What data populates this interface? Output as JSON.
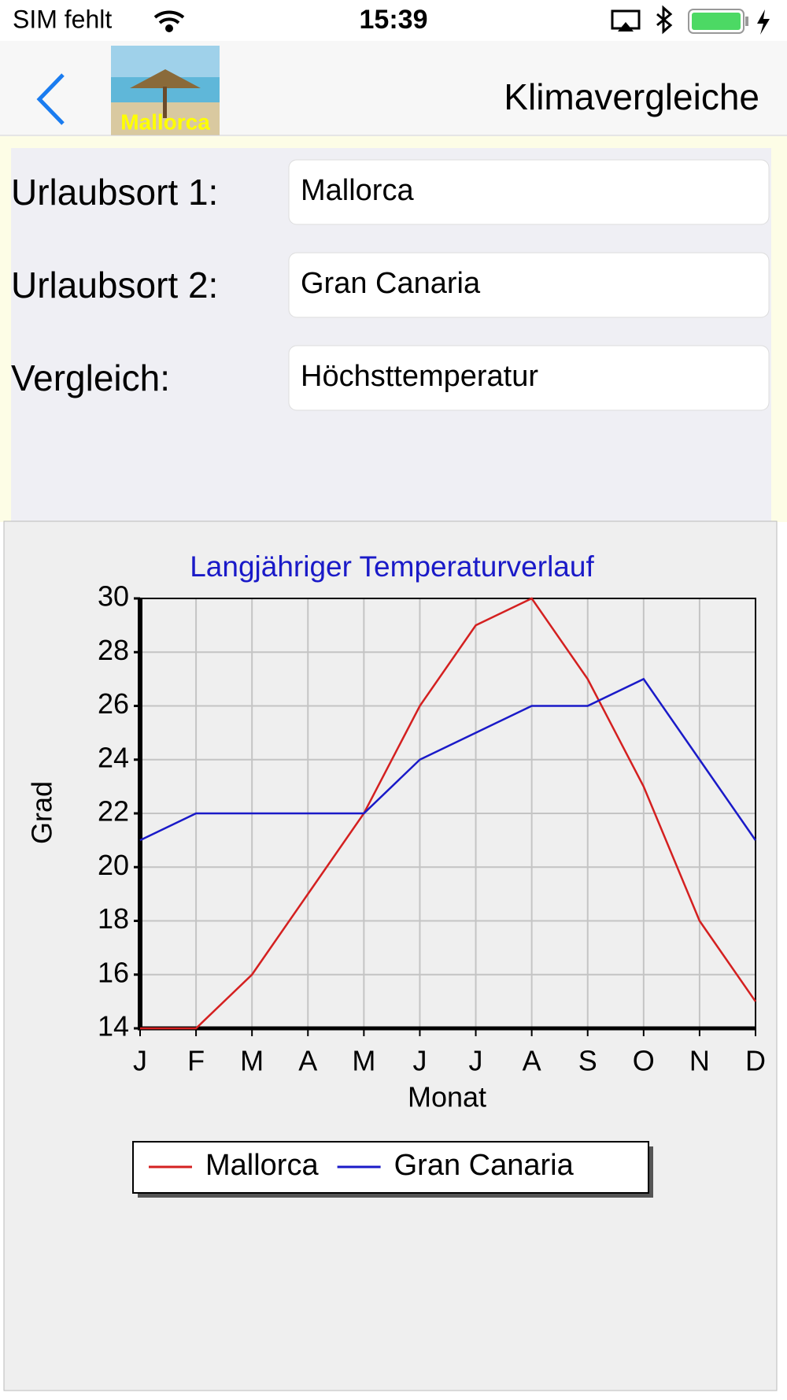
{
  "status_bar": {
    "carrier": "SIM fehlt",
    "time": "15:39"
  },
  "nav": {
    "title": "Klimavergleiche",
    "thumbnail_label": "Mallorca"
  },
  "form": {
    "rows": [
      {
        "label": "Urlaubsort 1:",
        "value": "Mallorca"
      },
      {
        "label": "Urlaubsort 2:",
        "value": "Gran Canaria"
      },
      {
        "label": "Vergleich:",
        "value": "Höchsttemperatur"
      }
    ]
  },
  "chart_data": {
    "type": "line",
    "title": "Langjähriger Temperaturverlauf",
    "x_label": "Monat",
    "y_label": "Grad",
    "categories": [
      "J",
      "F",
      "M",
      "A",
      "M",
      "J",
      "J",
      "A",
      "S",
      "O",
      "N",
      "D"
    ],
    "series": [
      {
        "name": "Mallorca",
        "color": "#d42020",
        "values": [
          14,
          14,
          16,
          19,
          22,
          26,
          29,
          30,
          27,
          23,
          18,
          15
        ]
      },
      {
        "name": "Gran Canaria",
        "color": "#1a1ac8",
        "values": [
          21,
          22,
          22,
          22,
          22,
          24,
          25,
          26,
          26,
          27,
          24,
          21
        ]
      }
    ],
    "ylim": [
      14,
      30
    ],
    "yticks": [
      14,
      16,
      18,
      20,
      22,
      24,
      26,
      28,
      30
    ],
    "grid": true,
    "legend": "bottom"
  }
}
